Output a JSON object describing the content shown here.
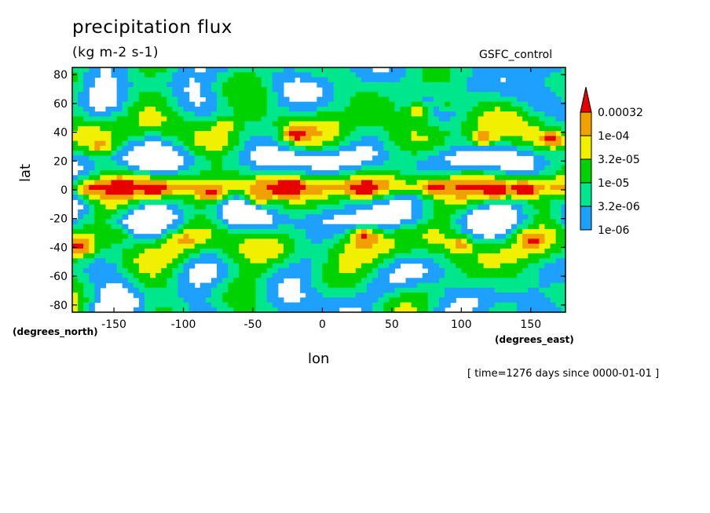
{
  "chart_data": {
    "type": "heatmap",
    "title": "precipitation flux",
    "units": "(kg m-2 s-1)",
    "dataset": "GSFC_control",
    "xlabel": "lon",
    "ylabel": "lat",
    "x_unit": "(degrees_east)",
    "y_unit": "(degrees_north)",
    "timestamp": "[ time=1276 days since 0000-01-01 ]",
    "xlim": [
      -180,
      175
    ],
    "ylim": [
      -85,
      85
    ],
    "x_ticks": [
      -150,
      -100,
      -50,
      0,
      50,
      100,
      150
    ],
    "x_tick_labels": [
      "-150",
      "-100",
      "-50",
      "0",
      "50",
      "100",
      "150"
    ],
    "y_ticks": [
      80,
      60,
      40,
      20,
      0,
      -20,
      -40,
      -60,
      -80
    ],
    "y_tick_labels": [
      "80",
      "60",
      "40",
      "20",
      "0",
      "-20",
      "-40",
      "-60",
      "-80"
    ],
    "colorbar": {
      "levels": [
        1e-06,
        3.2e-06,
        1e-05,
        3.2e-05,
        0.0001,
        0.00032
      ],
      "level_labels": [
        "1e-06",
        "3.2e-06",
        "1e-05",
        "3.2e-05",
        "1e-04",
        "0.00032"
      ],
      "colors": [
        "#ffffff",
        "#1ea0ff",
        "#00e68c",
        "#00d200",
        "#f0f000",
        "#f0a000",
        "#e60000"
      ]
    },
    "features": [
      {
        "lon": -170,
        "lat": 0,
        "level": 5
      },
      {
        "lon": -120,
        "lat": 0,
        "level": 5
      },
      {
        "lon": -80,
        "lat": -3,
        "level": 6
      },
      {
        "lon": -45,
        "lat": -6,
        "level": 6
      },
      {
        "lon": -25,
        "lat": 2,
        "level": 6
      },
      {
        "lon": 30,
        "lat": 0,
        "level": 5
      },
      {
        "lon": 80,
        "lat": 2,
        "level": 5
      },
      {
        "lon": 125,
        "lat": -2,
        "level": 5
      },
      {
        "lon": 145,
        "lat": 0,
        "level": 6
      },
      {
        "lon": 30,
        "lat": -32,
        "level": 6
      },
      {
        "lon": -175,
        "lat": -40,
        "level": 6
      },
      {
        "lon": -145,
        "lat": -30,
        "level": 4
      },
      {
        "lon": -100,
        "lat": -35,
        "level": 4
      },
      {
        "lon": 100,
        "lat": -38,
        "level": 5
      },
      {
        "lon": 150,
        "lat": -35,
        "level": 5
      },
      {
        "lon": -160,
        "lat": 30,
        "level": 4
      },
      {
        "lon": -70,
        "lat": 45,
        "level": 4
      },
      {
        "lon": -20,
        "lat": 38,
        "level": 6
      },
      {
        "lon": 70,
        "lat": 55,
        "level": 5
      },
      {
        "lon": 115,
        "lat": 35,
        "level": 6
      },
      {
        "lon": 165,
        "lat": 35,
        "level": 6
      },
      {
        "lon": 90,
        "lat": 60,
        "level": 4
      }
    ]
  }
}
